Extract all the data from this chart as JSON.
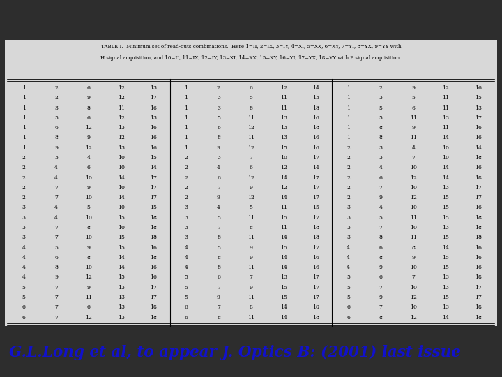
{
  "background_color": "#2d2d2d",
  "top_bar_color": "#3a3a3a",
  "table_bg": "#e8e8e8",
  "caption_line1": "TABLE I.  Minimum set of read-outs combinations.  Here 1=II, 2=IX, 3=IY, 4=XI, 5=XX, 6=XY, 7=YI, 8=YX, 9=YY with",
  "caption_line2": "H signal acquisition, and 10=II, 11=IX, 12=IY, 13=XI, 14=XX, 15=XY, 16=YI, 17=YX, 18=YY with P signal acquisition.",
  "footer": "G.L.Long et al, to appear J. Optics B: (2001) last issue",
  "footer_color": "#1111cc",
  "table_data": [
    [
      1,
      2,
      6,
      12,
      13,
      1,
      2,
      6,
      12,
      14,
      1,
      2,
      9,
      12,
      16
    ],
    [
      1,
      2,
      9,
      12,
      17,
      1,
      3,
      5,
      11,
      13,
      1,
      3,
      5,
      11,
      15
    ],
    [
      1,
      3,
      8,
      11,
      16,
      1,
      3,
      8,
      11,
      18,
      1,
      5,
      6,
      11,
      13
    ],
    [
      1,
      5,
      6,
      12,
      13,
      1,
      5,
      11,
      13,
      16,
      1,
      5,
      11,
      13,
      17
    ],
    [
      1,
      6,
      12,
      13,
      16,
      1,
      6,
      12,
      13,
      18,
      1,
      8,
      9,
      11,
      16
    ],
    [
      1,
      8,
      9,
      12,
      16,
      1,
      8,
      11,
      13,
      16,
      1,
      8,
      11,
      14,
      16
    ],
    [
      1,
      9,
      12,
      13,
      16,
      1,
      9,
      12,
      15,
      16,
      2,
      3,
      4,
      10,
      14
    ],
    [
      2,
      3,
      4,
      10,
      15,
      2,
      3,
      7,
      10,
      17,
      2,
      3,
      7,
      10,
      18
    ],
    [
      2,
      4,
      6,
      10,
      14,
      2,
      4,
      6,
      12,
      14,
      2,
      4,
      10,
      14,
      16
    ],
    [
      2,
      4,
      10,
      14,
      17,
      2,
      6,
      12,
      14,
      17,
      2,
      6,
      12,
      14,
      18
    ],
    [
      2,
      7,
      9,
      10,
      17,
      2,
      7,
      9,
      12,
      17,
      2,
      7,
      10,
      13,
      17
    ],
    [
      2,
      7,
      10,
      14,
      17,
      2,
      9,
      12,
      14,
      17,
      2,
      9,
      12,
      15,
      17
    ],
    [
      3,
      4,
      5,
      10,
      15,
      3,
      4,
      5,
      11,
      15,
      3,
      4,
      10,
      15,
      16
    ],
    [
      3,
      4,
      10,
      15,
      18,
      3,
      5,
      11,
      15,
      17,
      3,
      5,
      11,
      15,
      18
    ],
    [
      3,
      7,
      8,
      10,
      18,
      3,
      7,
      8,
      11,
      18,
      3,
      7,
      10,
      13,
      18
    ],
    [
      3,
      7,
      10,
      15,
      18,
      3,
      8,
      11,
      14,
      18,
      3,
      8,
      11,
      15,
      18
    ],
    [
      4,
      5,
      9,
      15,
      16,
      4,
      5,
      9,
      15,
      17,
      4,
      6,
      8,
      14,
      16
    ],
    [
      4,
      6,
      8,
      14,
      18,
      4,
      8,
      9,
      14,
      16,
      4,
      8,
      9,
      15,
      16
    ],
    [
      4,
      8,
      10,
      14,
      16,
      4,
      8,
      11,
      14,
      16,
      4,
      9,
      10,
      15,
      16
    ],
    [
      4,
      9,
      12,
      15,
      16,
      5,
      6,
      7,
      13,
      17,
      5,
      6,
      7,
      13,
      18
    ],
    [
      5,
      7,
      9,
      13,
      17,
      5,
      7,
      9,
      15,
      17,
      5,
      7,
      10,
      13,
      17
    ],
    [
      5,
      7,
      11,
      13,
      17,
      5,
      9,
      11,
      15,
      17,
      5,
      9,
      12,
      15,
      17
    ],
    [
      6,
      7,
      6,
      13,
      18,
      6,
      7,
      8,
      14,
      18,
      6,
      7,
      10,
      13,
      18
    ],
    [
      6,
      7,
      12,
      13,
      18,
      6,
      8,
      11,
      14,
      18,
      6,
      8,
      12,
      14,
      18
    ]
  ]
}
